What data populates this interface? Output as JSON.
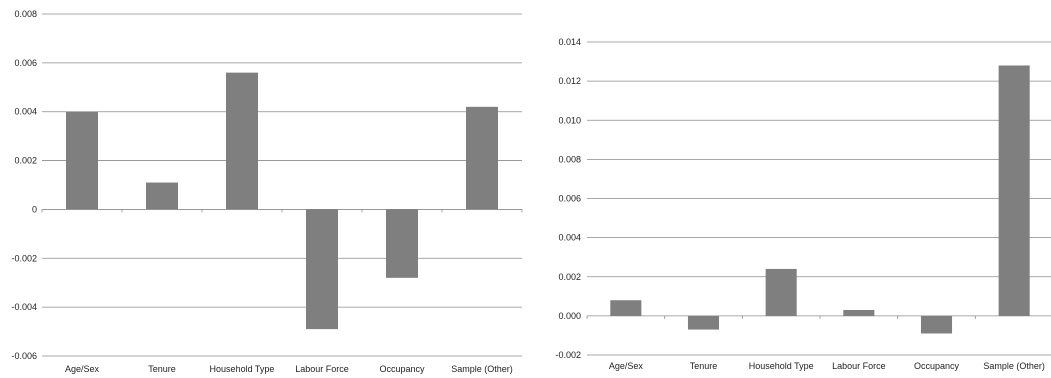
{
  "chart_data": [
    {
      "type": "bar",
      "categories": [
        "Age/Sex",
        "Tenure",
        "Household Type",
        "Labour Force",
        "Occupancy",
        "Sample (Other)"
      ],
      "values": [
        0.004,
        0.0011,
        0.0056,
        -0.0049,
        -0.0028,
        0.0042
      ],
      "ylim": [
        -0.006,
        0.008
      ],
      "y_ticks": [
        0.008,
        0.006,
        0.004,
        0.002,
        0,
        -0.002,
        -0.004,
        -0.006
      ],
      "y_tick_labels": [
        "0.008",
        "0.006",
        "0.004",
        "0.002",
        "0",
        "-0.002",
        "-0.004",
        "-0.006"
      ],
      "grid": true,
      "title": "",
      "xlabel": "",
      "ylabel": ""
    },
    {
      "type": "bar",
      "categories": [
        "Age/Sex",
        "Tenure",
        "Household Type",
        "Labour Force",
        "Occupancy",
        "Sample (Other)"
      ],
      "values": [
        0.0008,
        -0.0007,
        0.0024,
        0.0003,
        -0.0009,
        0.0128
      ],
      "ylim": [
        -0.002,
        0.014
      ],
      "y_ticks": [
        0.014,
        0.012,
        0.01,
        0.008,
        0.006,
        0.004,
        0.002,
        0.0,
        -0.002
      ],
      "y_tick_labels": [
        "0.014",
        "0.012",
        "0.010",
        "0.008",
        "0.006",
        "0.004",
        "0.002",
        "0.000",
        "-0.002"
      ],
      "grid": true,
      "title": "",
      "xlabel": "",
      "ylabel": ""
    }
  ],
  "colors": {
    "bar": "#7f7f7f",
    "grid": "#8c8c8c",
    "axis": "#8c8c8c",
    "text": "#222222"
  }
}
